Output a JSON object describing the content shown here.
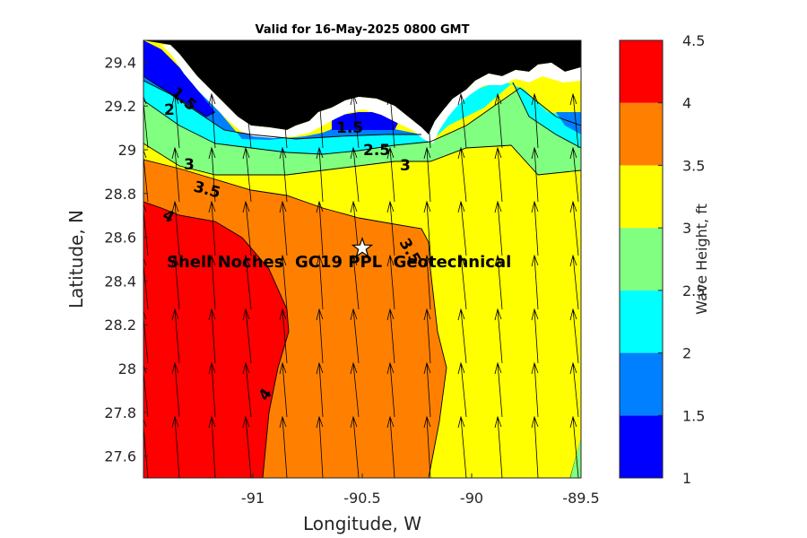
{
  "title": "Valid for 16-May-2025 0800 GMT",
  "xlabel": "Longitude, W",
  "ylabel": "Latitude, N",
  "x_ticks": [
    "-91",
    "-90.5",
    "-90",
    "-89.5"
  ],
  "y_ticks": [
    "29.4",
    "29.2",
    "29",
    "28.8",
    "28.6",
    "28.4",
    "28.2",
    "28",
    "27.8",
    "27.6"
  ],
  "colorbar": {
    "label": "Wave Height, ft",
    "ticks": [
      "4.5",
      "4",
      "3.5",
      "3",
      "2.5",
      "2",
      "1.5",
      "1"
    ],
    "levels": [
      {
        "from": 1.0,
        "to": 1.5,
        "color": "#0000ff"
      },
      {
        "from": 1.5,
        "to": 2.0,
        "color": "#0080ff"
      },
      {
        "from": 2.0,
        "to": 2.5,
        "color": "#00ffff"
      },
      {
        "from": 2.5,
        "to": 3.0,
        "color": "#80ff80"
      },
      {
        "from": 3.0,
        "to": 3.5,
        "color": "#ffff00"
      },
      {
        "from": 3.5,
        "to": 4.0,
        "color": "#ff8000"
      },
      {
        "from": 4.0,
        "to": 4.5,
        "color": "#ff0000"
      }
    ]
  },
  "contour_labels": {
    "c1_5": "1.5",
    "c2_top": "2",
    "c1_5b": "1.5",
    "c2_5": "2.5",
    "c3_left": "3",
    "c3_right": "3",
    "c3_5_left": "3.5",
    "c3_5_mid": "3.5",
    "c4_top": "4",
    "c4_bottom": "4"
  },
  "site": {
    "name": "Shell Noches  GC19 PPL  Geotechnical",
    "lon": -90.5,
    "lat": 28.55
  },
  "chart_data": {
    "type": "heatmap",
    "title": "Valid for 16-May-2025 0800 GMT",
    "xlabel": "Longitude, W",
    "ylabel": "Latitude, N",
    "xlim": [
      -91.5,
      -89.5
    ],
    "ylim": [
      27.5,
      29.5
    ],
    "colorbar_range": [
      1,
      4.5
    ],
    "colorbar_label": "Wave Height, ft",
    "contour_levels": [
      1.5,
      2,
      2.5,
      3,
      3.5,
      4
    ],
    "grid": false,
    "arrow_direction": "northward",
    "site": {
      "name": "Shell Noches GC19 PPL Geotechnical",
      "lon": -90.5,
      "lat": 28.55
    }
  }
}
